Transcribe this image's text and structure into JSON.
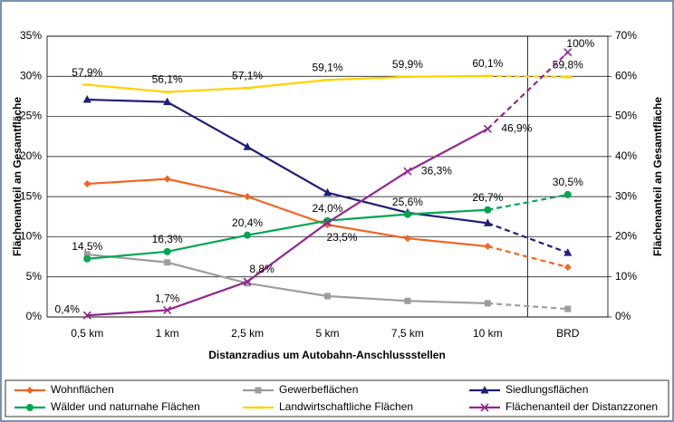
{
  "chart_data": {
    "type": "line",
    "xlabel": "Distanzradius um Autobahn-Anschlussstellen",
    "ylabel": "Flächenanteil an Gesamtfläche",
    "y2label": "Flächenanteil an Gesamtfläche",
    "categories": [
      "0,5 km",
      "1 km",
      "2,5 km",
      "5 km",
      "7,5 km",
      "10 km",
      "BRD"
    ],
    "ylim": [
      0,
      35
    ],
    "yticks": [
      {
        "value": 0,
        "label": "0%"
      },
      {
        "value": 5,
        "label": "5%"
      },
      {
        "value": 10,
        "label": "10%"
      },
      {
        "value": 15,
        "label": "15%"
      },
      {
        "value": 20,
        "label": "20%"
      },
      {
        "value": 25,
        "label": "25%"
      },
      {
        "value": 30,
        "label": "30%"
      },
      {
        "value": 35,
        "label": "35%"
      }
    ],
    "y2lim": [
      0,
      70
    ],
    "y2ticks": [
      {
        "value": 0,
        "label": "0%"
      },
      {
        "value": 10,
        "label": "10%"
      },
      {
        "value": 20,
        "label": "20%"
      },
      {
        "value": 30,
        "label": "30%"
      },
      {
        "value": 40,
        "label": "40%"
      },
      {
        "value": 50,
        "label": "50%"
      },
      {
        "value": 60,
        "label": "60%"
      },
      {
        "value": 70,
        "label": "70%"
      }
    ],
    "grid": true,
    "legend": "bottom",
    "series": [
      {
        "name": "Wohnflächen",
        "color": "#f26522",
        "marker": "diamond",
        "axis": "y",
        "values": [
          16.6,
          17.2,
          15.0,
          11.5,
          9.8,
          8.8,
          6.2
        ]
      },
      {
        "name": "Gewerbeflächen",
        "color": "#9d9d9d",
        "marker": "square",
        "axis": "y",
        "values": [
          7.8,
          6.8,
          4.2,
          2.6,
          2.0,
          1.7,
          1.0
        ]
      },
      {
        "name": "Siedlungsflächen",
        "color": "#1f1f7a",
        "marker": "triangle",
        "axis": "y",
        "values": [
          27.1,
          26.8,
          21.2,
          15.5,
          13.0,
          11.7,
          8.0
        ]
      },
      {
        "name": "Wälder und naturnahe Flächen",
        "color": "#00a651",
        "marker": "circle",
        "axis": "y2",
        "values": [
          14.5,
          16.3,
          20.4,
          24.0,
          25.6,
          26.7,
          30.5
        ],
        "value_labels": [
          "14,5%",
          "16,3%",
          "20,4%",
          "24,0%",
          "25,6%",
          "26,7%",
          "30,5%"
        ]
      },
      {
        "name": "Landwirtschaftliche Flächen",
        "color": "#ffd200",
        "marker": "dash",
        "axis": "y2",
        "values": [
          57.9,
          56.1,
          57.1,
          59.1,
          59.9,
          60.1,
          59.8
        ],
        "value_labels": [
          "57,9%",
          "56,1%",
          "57,1%",
          "59,1%",
          "59,9%",
          "60,1%",
          "59,8%"
        ]
      },
      {
        "name": "Flächenanteil der Distanzzonen",
        "color": "#92278f",
        "marker": "x",
        "axis": "y2",
        "values": [
          0.4,
          1.7,
          8.8,
          23.5,
          36.3,
          46.9,
          66
        ],
        "value_labels": [
          "0,4%",
          "1,7%",
          "8,8%",
          "23,5%",
          "36,3%",
          "46,9%",
          null
        ]
      }
    ],
    "annotations": [
      {
        "text": "100%"
      }
    ]
  }
}
